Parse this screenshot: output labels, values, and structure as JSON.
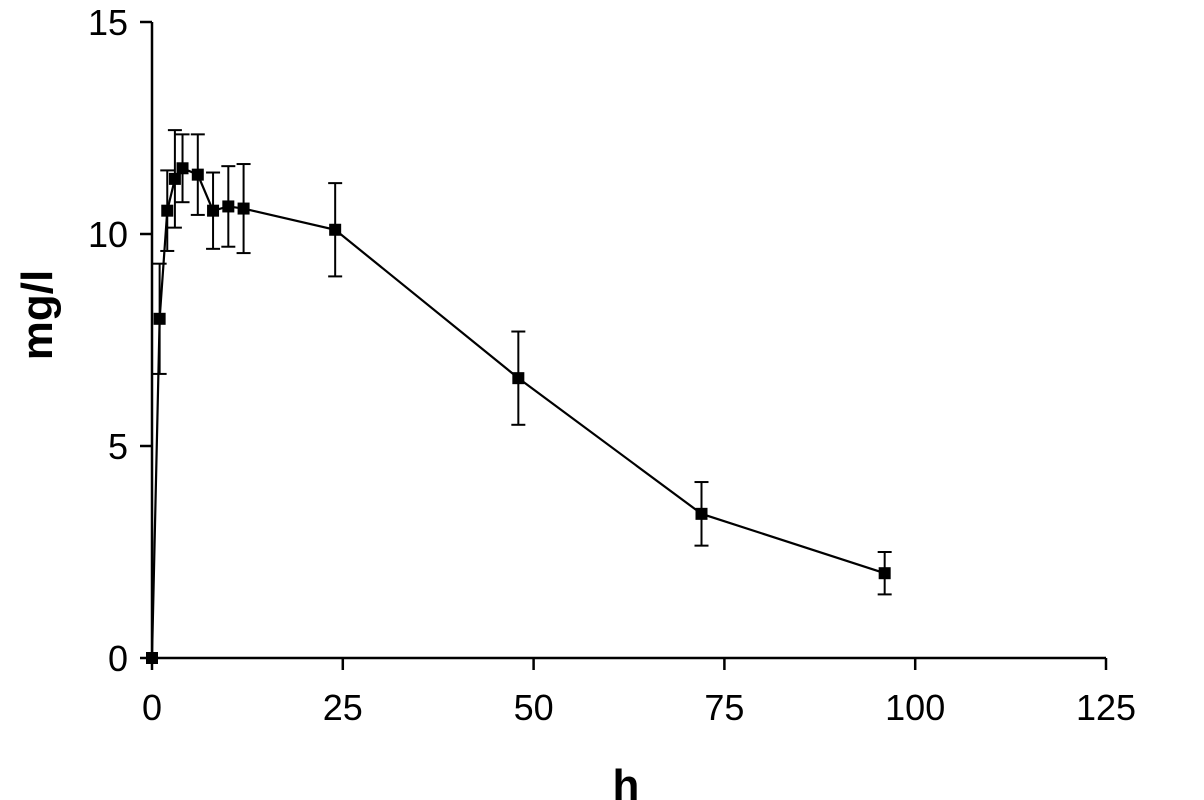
{
  "chart_data": {
    "type": "line",
    "title": "",
    "xlabel": "h",
    "ylabel": "mg/l",
    "xlim": [
      0,
      125
    ],
    "ylim": [
      0,
      15
    ],
    "x_ticks": [
      0,
      25,
      50,
      75,
      100,
      125
    ],
    "x_tick_labels": [
      "0",
      "25",
      "50",
      "75",
      "100",
      "125"
    ],
    "y_ticks": [
      0,
      5,
      10,
      15
    ],
    "y_tick_labels": [
      "0",
      "5",
      "10",
      "15"
    ],
    "grid": false,
    "legend": "none",
    "marker": "square",
    "color": "#000000",
    "series": [
      {
        "points": [
          {
            "x": 0,
            "y": 0,
            "err": 0
          },
          {
            "x": 1,
            "y": 8.0,
            "err": 1.3
          },
          {
            "x": 2,
            "y": 10.55,
            "err": 0.95
          },
          {
            "x": 3,
            "y": 11.3,
            "err": 1.15
          },
          {
            "x": 4,
            "y": 11.55,
            "err": 0.8
          },
          {
            "x": 6,
            "y": 11.4,
            "err": 0.95
          },
          {
            "x": 8,
            "y": 10.55,
            "err": 0.9
          },
          {
            "x": 10,
            "y": 10.65,
            "err": 0.95
          },
          {
            "x": 12,
            "y": 10.6,
            "err": 1.05
          },
          {
            "x": 24,
            "y": 10.1,
            "err": 1.1
          },
          {
            "x": 48,
            "y": 6.6,
            "err": 1.1
          },
          {
            "x": 72,
            "y": 3.4,
            "err": 0.75
          },
          {
            "x": 96,
            "y": 2.0,
            "err": 0.5
          }
        ]
      }
    ]
  }
}
